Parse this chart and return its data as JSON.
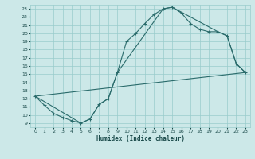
{
  "xlabel": "Humidex (Indice chaleur)",
  "bg_color": "#cce8e8",
  "grid_color": "#99cccc",
  "line_color": "#2a6b6b",
  "xlim": [
    -0.5,
    23.5
  ],
  "ylim": [
    8.5,
    23.5
  ],
  "xticks": [
    0,
    1,
    2,
    3,
    4,
    5,
    6,
    7,
    8,
    9,
    10,
    11,
    12,
    13,
    14,
    15,
    16,
    17,
    18,
    19,
    20,
    21,
    22,
    23
  ],
  "yticks": [
    9,
    10,
    11,
    12,
    13,
    14,
    15,
    16,
    17,
    18,
    19,
    20,
    21,
    22,
    23
  ],
  "line1_x": [
    0,
    1,
    2,
    3,
    4,
    5,
    6,
    7,
    8,
    9,
    10,
    11,
    12,
    13,
    14,
    15,
    16,
    17,
    18,
    19,
    20,
    21,
    22,
    23
  ],
  "line1_y": [
    12.3,
    11.2,
    10.2,
    9.7,
    9.3,
    9.0,
    9.5,
    11.3,
    12.0,
    15.2,
    19.0,
    20.0,
    21.2,
    22.3,
    23.0,
    23.2,
    22.5,
    21.2,
    20.5,
    20.2,
    20.2,
    19.7,
    16.3,
    15.2
  ],
  "line2_x": [
    0,
    5,
    6,
    7,
    8,
    9,
    14,
    15,
    20,
    21,
    22,
    23
  ],
  "line2_y": [
    12.3,
    9.0,
    9.5,
    11.3,
    12.0,
    15.2,
    23.0,
    23.2,
    20.2,
    19.7,
    16.3,
    15.2
  ],
  "line3_x": [
    0,
    23
  ],
  "line3_y": [
    12.3,
    15.2
  ]
}
